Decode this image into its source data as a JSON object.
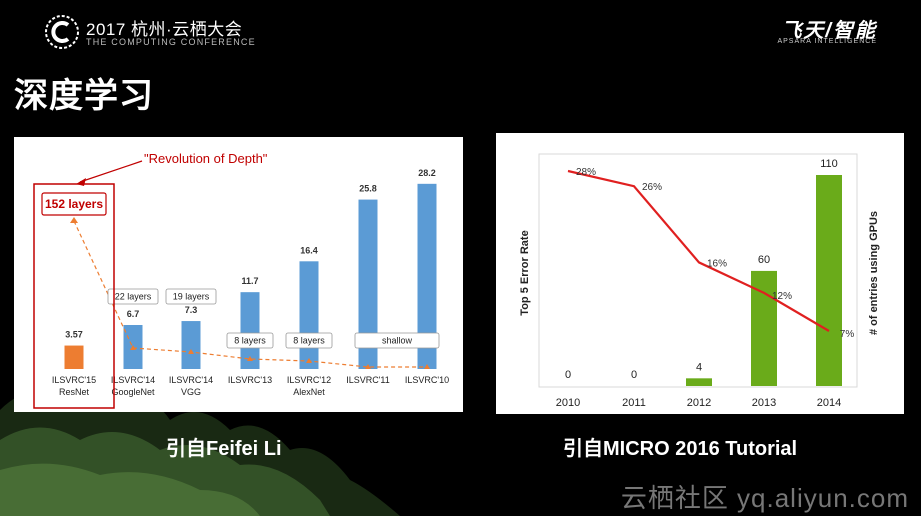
{
  "header": {
    "conference_title": "2017 杭州·云栖大会",
    "conference_subtitle": "THE COMPUTING CONFERENCE",
    "brand_name": "飞天/智能",
    "brand_subtitle": "APSARA INTELLIGENCE"
  },
  "slide_title": "深度学习",
  "captions": {
    "left": "引自Feifei Li",
    "right": "引自MICRO 2016 Tutorial"
  },
  "watermark": "云栖社区 yq.aliyun.com",
  "chart_data": [
    {
      "type": "bar",
      "categories": [
        "ILSVRC'15",
        "ILSVRC'14",
        "ILSVRC'14",
        "ILSVRC'13",
        "ILSVRC'12",
        "ILSVRC'11",
        "ILSVRC'10"
      ],
      "sub_labels": [
        "ResNet",
        "GoogleNet",
        "VGG",
        "",
        "AlexNet",
        "",
        ""
      ],
      "values": [
        3.57,
        6.7,
        7.3,
        11.7,
        16.4,
        25.8,
        28.2
      ],
      "value_labels": [
        "3.57",
        "6.7",
        "7.3",
        "11.7",
        "16.4",
        "25.8",
        "28.2"
      ],
      "bar_colors": [
        "#ed7d31",
        "#5b9bd5",
        "#5b9bd5",
        "#5b9bd5",
        "#5b9bd5",
        "#5b9bd5",
        "#5b9bd5"
      ],
      "layer_boxes": [
        "152 layers",
        "22 layers",
        "19 layers",
        "8 layers",
        "8 layers",
        "shallow"
      ],
      "annotation": "\"Revolution of Depth\"",
      "highlight_color": "#c00000",
      "ylim": [
        0,
        30
      ]
    },
    {
      "type": "bar",
      "categories": [
        "2010",
        "2011",
        "2012",
        "2013",
        "2014"
      ],
      "values": [
        0,
        0,
        4,
        60,
        110
      ],
      "bar_color": "#6aab1a",
      "ylabel_left": "Top 5 Error Rate",
      "ylabel_right": "# of entries using GPUs",
      "line": {
        "values": [
          28,
          26,
          16,
          12,
          7
        ],
        "labels": [
          "28%",
          "26%",
          "16%",
          "12%",
          "7%"
        ],
        "color": "#e02020"
      },
      "bar_ylim": [
        0,
        120
      ],
      "line_ylim": [
        0,
        30
      ]
    }
  ]
}
